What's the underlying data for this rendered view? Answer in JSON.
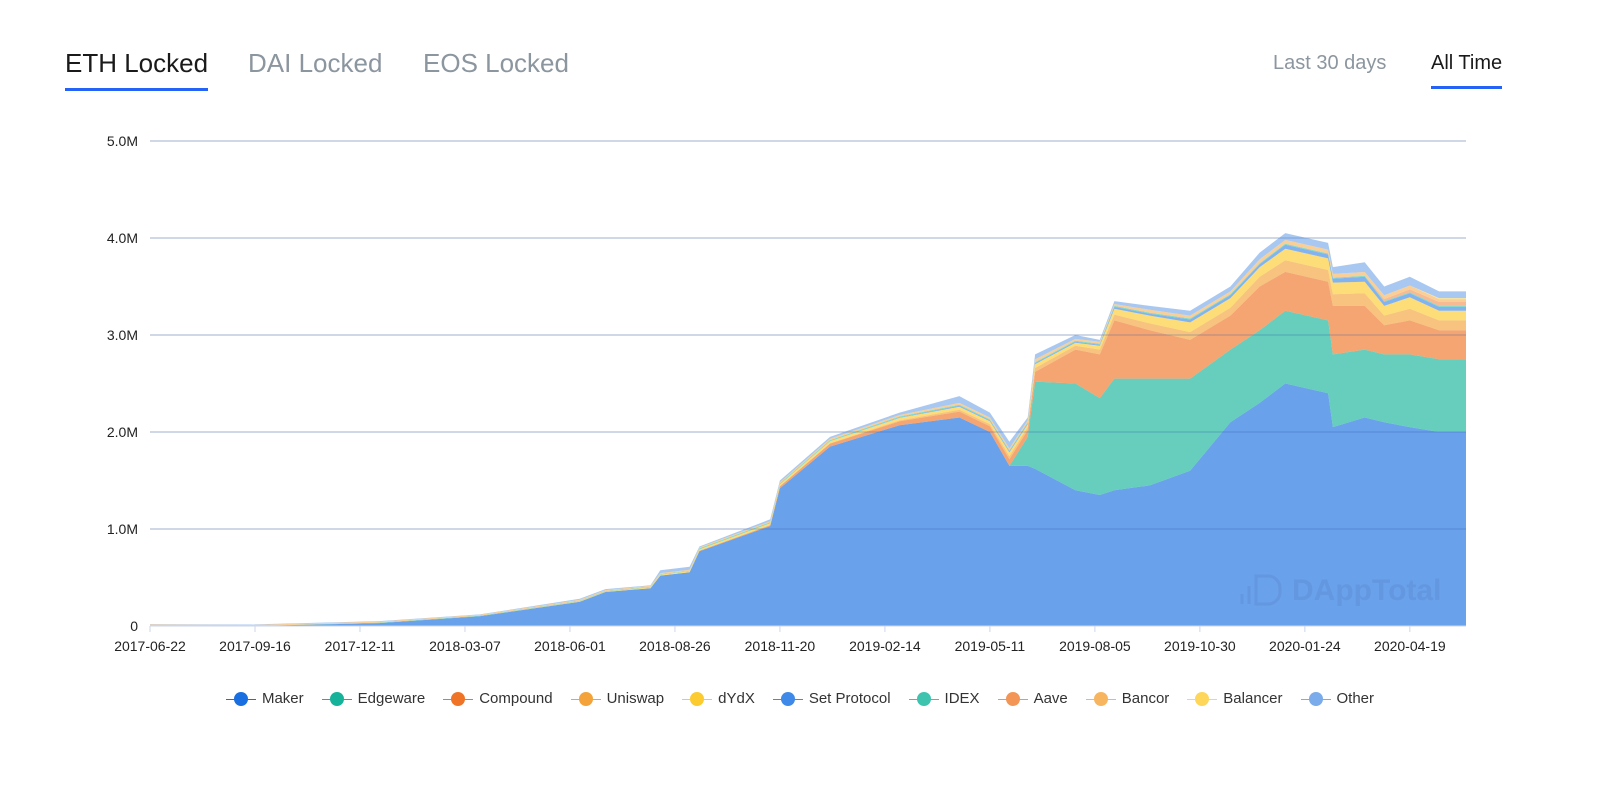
{
  "tabs": [
    {
      "label": "ETH Locked",
      "active": true
    },
    {
      "label": "DAI Locked",
      "active": false
    },
    {
      "label": "EOS Locked",
      "active": false
    }
  ],
  "ranges": [
    {
      "label": "Last 30 days",
      "active": false
    },
    {
      "label": "All Time",
      "active": true
    }
  ],
  "watermark": "DAppTotal",
  "chart_data": {
    "type": "area",
    "stacked": true,
    "title": "",
    "xlabel": "",
    "ylabel": "",
    "ylim": [
      0,
      5000000
    ],
    "yticks": [
      {
        "v": 0,
        "label": "0"
      },
      {
        "v": 1000000,
        "label": "1.0M"
      },
      {
        "v": 2000000,
        "label": "2.0M"
      },
      {
        "v": 3000000,
        "label": "3.0M"
      },
      {
        "v": 4000000,
        "label": "4.0M"
      },
      {
        "v": 5000000,
        "label": "5.0M"
      }
    ],
    "xticks": [
      "2017-06-22",
      "2017-09-16",
      "2017-12-11",
      "2018-03-07",
      "2018-06-01",
      "2018-08-26",
      "2018-11-20",
      "2019-02-14",
      "2019-05-11",
      "2019-08-05",
      "2019-10-30",
      "2020-01-24",
      "2020-04-19"
    ],
    "xlim": [
      "2017-06-22",
      "2020-06-04"
    ],
    "grid": true,
    "legend_position": "bottom",
    "value_unit": "M ETH",
    "x": [
      "2017-06-22",
      "2017-09-12",
      "2017-12-27",
      "2018-03-19",
      "2018-06-09",
      "2018-06-30",
      "2018-08-06",
      "2018-08-14",
      "2018-09-07",
      "2018-09-15",
      "2018-11-12",
      "2018-11-20",
      "2018-12-31",
      "2019-02-26",
      "2019-04-16",
      "2019-05-11",
      "2019-05-27",
      "2019-06-11",
      "2019-06-17",
      "2019-07-20",
      "2019-08-09",
      "2019-08-21",
      "2019-09-19",
      "2019-10-22",
      "2019-11-24",
      "2019-12-18",
      "2020-01-08",
      "2020-02-12",
      "2020-02-16",
      "2020-03-13",
      "2020-03-29",
      "2020-04-19",
      "2020-05-13",
      "2020-06-04"
    ],
    "series": [
      {
        "name": "Maker",
        "color": "#1a6fe0",
        "values": [
          0,
          0,
          0.03,
          0.1,
          0.25,
          0.35,
          0.39,
          0.52,
          0.555,
          0.77,
          1.03,
          1.42,
          1.85,
          2.07,
          2.15,
          2.0,
          1.65,
          1.65,
          1.62,
          1.4,
          1.35,
          1.4,
          1.45,
          1.6,
          2.1,
          2.3,
          2.5,
          2.4,
          2.05,
          2.15,
          2.1,
          2.05,
          2.0,
          2.0
        ]
      },
      {
        "name": "Edgeware",
        "color": "#16b39a",
        "values": [
          0,
          0,
          0,
          0,
          0,
          0,
          0,
          0,
          0,
          0,
          0,
          0,
          0,
          0,
          0,
          0,
          0,
          0.3,
          0.9,
          1.1,
          1.0,
          1.15,
          1.1,
          0.95,
          0.75,
          0.75,
          0.75,
          0.75,
          0.75,
          0.7,
          0.7,
          0.75,
          0.75,
          0.75
        ]
      },
      {
        "name": "Compound",
        "color": "#f07427",
        "values": [
          0,
          0,
          0,
          0,
          0,
          0,
          0,
          0,
          0,
          0.005,
          0.01,
          0.02,
          0.03,
          0.04,
          0.06,
          0.06,
          0.07,
          0.07,
          0.1,
          0.35,
          0.45,
          0.6,
          0.5,
          0.4,
          0.35,
          0.45,
          0.4,
          0.4,
          0.5,
          0.45,
          0.3,
          0.35,
          0.3,
          0.3
        ]
      },
      {
        "name": "Uniswap",
        "color": "#f3a33a",
        "values": [
          0,
          0,
          0,
          0,
          0,
          0,
          0,
          0,
          0,
          0,
          0,
          0,
          0.005,
          0.01,
          0.02,
          0.02,
          0.03,
          0.03,
          0.04,
          0.04,
          0.05,
          0.06,
          0.07,
          0.08,
          0.08,
          0.1,
          0.12,
          0.12,
          0.12,
          0.13,
          0.1,
          0.12,
          0.1,
          0.1
        ]
      },
      {
        "name": "dYdX",
        "color": "#fccb2f",
        "values": [
          0,
          0,
          0,
          0,
          0.005,
          0.005,
          0.01,
          0.01,
          0.01,
          0.015,
          0.02,
          0.02,
          0.02,
          0.025,
          0.03,
          0.03,
          0.04,
          0.03,
          0.04,
          0.03,
          0.04,
          0.06,
          0.08,
          0.1,
          0.1,
          0.1,
          0.12,
          0.12,
          0.12,
          0.12,
          0.1,
          0.12,
          0.1,
          0.1
        ]
      },
      {
        "name": "Set Protocol",
        "color": "#3f8ae8",
        "values": [
          0,
          0,
          0,
          0,
          0,
          0,
          0,
          0,
          0,
          0,
          0,
          0,
          0,
          0.005,
          0.01,
          0.01,
          0.01,
          0.01,
          0.01,
          0.01,
          0.01,
          0.02,
          0.02,
          0.03,
          0.03,
          0.03,
          0.04,
          0.04,
          0.04,
          0.05,
          0.04,
          0.04,
          0.04,
          0.04
        ]
      },
      {
        "name": "IDEX",
        "color": "#3ec4ae",
        "values": [
          0,
          0,
          0.005,
          0.005,
          0.005,
          0.005,
          0.005,
          0.005,
          0.005,
          0.01,
          0.01,
          0.01,
          0.01,
          0.01,
          0.01,
          0.01,
          0.01,
          0.01,
          0.01,
          0.01,
          0.01,
          0.01,
          0.01,
          0.01,
          0.01,
          0.01,
          0.01,
          0.01,
          0.01,
          0.01,
          0.01,
          0.01,
          0.01,
          0.01
        ]
      },
      {
        "name": "Aave",
        "color": "#f39557",
        "values": [
          0,
          0,
          0,
          0,
          0,
          0,
          0,
          0,
          0,
          0,
          0,
          0,
          0,
          0,
          0,
          0,
          0,
          0,
          0,
          0,
          0,
          0,
          0,
          0,
          0,
          0,
          0,
          0,
          0,
          0,
          0.02,
          0.03,
          0.04,
          0.04
        ]
      },
      {
        "name": "Bancor",
        "color": "#f8b560",
        "values": [
          0.015,
          0.01,
          0.01,
          0.01,
          0.01,
          0.01,
          0.01,
          0.01,
          0.01,
          0.01,
          0.01,
          0.01,
          0.015,
          0.015,
          0.02,
          0.02,
          0.02,
          0.02,
          0.03,
          0.02,
          0.02,
          0.02,
          0.03,
          0.03,
          0.03,
          0.04,
          0.04,
          0.04,
          0.04,
          0.04,
          0.04,
          0.04,
          0.03,
          0.03
        ]
      },
      {
        "name": "Balancer",
        "color": "#fdd65a",
        "values": [
          0,
          0,
          0,
          0,
          0,
          0,
          0,
          0,
          0,
          0,
          0,
          0,
          0,
          0,
          0,
          0,
          0,
          0,
          0,
          0,
          0,
          0,
          0,
          0,
          0,
          0,
          0,
          0,
          0,
          0,
          0,
          0,
          0.01,
          0.01
        ]
      },
      {
        "name": "Other",
        "color": "#7aabeb",
        "values": [
          0.005,
          0.005,
          0.005,
          0.005,
          0.01,
          0.01,
          0.005,
          0.03,
          0.03,
          0.01,
          0.02,
          0.02,
          0.02,
          0.025,
          0.07,
          0.05,
          0.07,
          0.03,
          0.05,
          0.04,
          0.02,
          0.03,
          0.04,
          0.05,
          0.05,
          0.07,
          0.07,
          0.07,
          0.07,
          0.1,
          0.09,
          0.09,
          0.07,
          0.07
        ]
      }
    ]
  }
}
